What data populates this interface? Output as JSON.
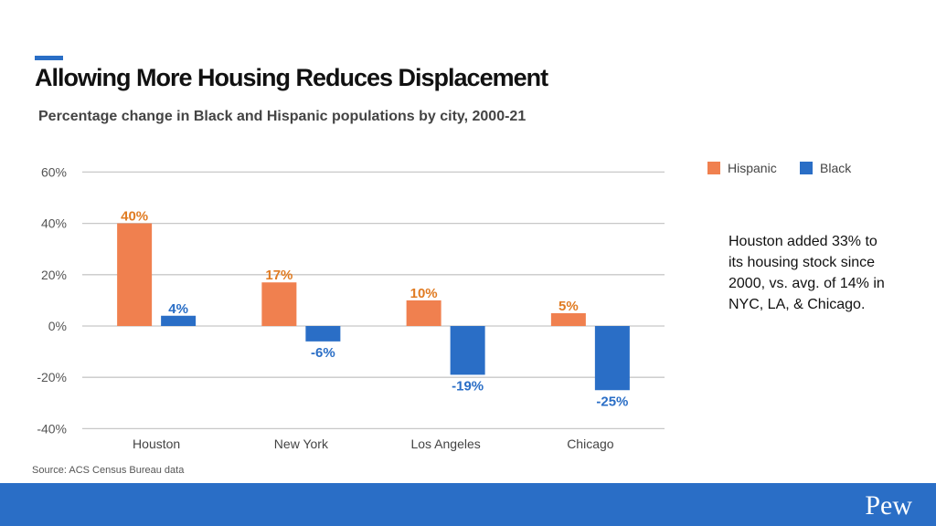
{
  "title": "Allowing More Housing Reduces Displacement",
  "subtitle": "Percentage change in Black and Hispanic populations by city, 2000-21",
  "note": "Houston added 33% to its housing stock since 2000, vs. avg. of 14% in NYC, LA, & Chicago.",
  "source": "Source: ACS Census Bureau data",
  "logo": "Pew",
  "chart_data": {
    "type": "bar",
    "categories": [
      "Houston",
      "New York",
      "Los Angeles",
      "Chicago"
    ],
    "series": [
      {
        "name": "Hispanic",
        "values": [
          40,
          17,
          10,
          5
        ],
        "labels": [
          "40%",
          "17%",
          "10%",
          "5%"
        ],
        "color": "#f0804f",
        "label_color": "#e07b22"
      },
      {
        "name": "Black",
        "values": [
          4,
          -6,
          -19,
          -25
        ],
        "labels": [
          "4%",
          "-6%",
          "-19%",
          "-25%"
        ],
        "color": "#2a6ec6",
        "label_color": "#2a6ec6"
      }
    ],
    "ylim": [
      -40,
      60
    ],
    "yticks": [
      60,
      40,
      20,
      0,
      -20,
      -40
    ],
    "ytick_labels": [
      "60%",
      "40%",
      "20%",
      "0%",
      "-20%",
      "-40%"
    ],
    "grid": true,
    "legend_position": "top-right"
  }
}
